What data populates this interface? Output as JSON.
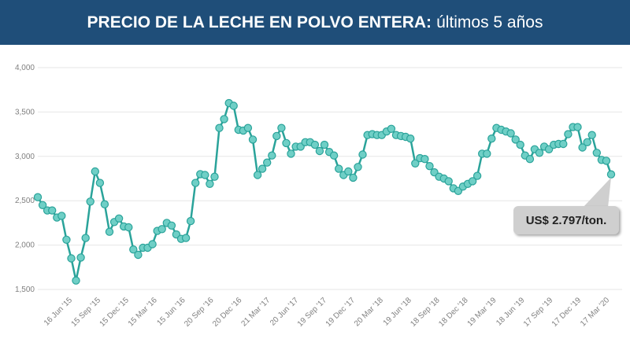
{
  "header": {
    "title_bold": "PRECIO DE LA LECHE EN POLVO ENTERA:",
    "title_rest": "últimos 5 años"
  },
  "callout": {
    "text": "US$ 2.797/ton."
  },
  "colors": {
    "header_bg": "#1f4e79",
    "line": "#2aa39a",
    "marker": "#6fcfc6",
    "grid": "#e6e6e6"
  },
  "chart_data": {
    "type": "line",
    "title": "PRECIO DE LA LECHE EN POLVO ENTERA: últimos 5 años",
    "xlabel": "",
    "ylabel": "",
    "ylim": [
      1500,
      4000
    ],
    "yticks": [
      1500,
      2000,
      2500,
      3000,
      3500,
      4000
    ],
    "ytick_labels": [
      "1,500",
      "2,000",
      "2,500",
      "3,000",
      "3,500",
      "4,000"
    ],
    "grid": true,
    "xtick_labels": [
      "16 Jun '15",
      "15 Sep '15",
      "15 Dec '15",
      "15 Mar '16",
      "15 Jun '16",
      "20 Sep '16",
      "20 Dec '16",
      "21 Mar '17",
      "20 Jun '17",
      "19 Sep '17",
      "19 Dec '17",
      "20 Mar '18",
      "19 Jun '18",
      "18 Sep '18",
      "18 Dec '18",
      "19 Mar '19",
      "18 Jun '19",
      "17 Sep '19",
      "17 Dec '19",
      "17 Mar '20"
    ],
    "series": [
      {
        "values": [
          2540,
          2450,
          2390,
          2390,
          2310,
          2330,
          2060,
          1850,
          1600,
          1860,
          2080,
          2490,
          2830,
          2700,
          2460,
          2150,
          2260,
          2300,
          2210,
          2200,
          1950,
          1890,
          1970,
          1970,
          2010,
          2160,
          2180,
          2250,
          2220,
          2120,
          2070,
          2080,
          2270,
          2700,
          2800,
          2790,
          2690,
          2770,
          3320,
          3420,
          3600,
          3570,
          3300,
          3290,
          3320,
          3190,
          2790,
          2860,
          2930,
          3010,
          3230,
          3320,
          3150,
          3030,
          3110,
          3110,
          3160,
          3160,
          3130,
          3060,
          3130,
          3050,
          3010,
          2860,
          2790,
          2830,
          2760,
          2880,
          3020,
          3240,
          3250,
          3240,
          3240,
          3280,
          3310,
          3240,
          3230,
          3220,
          3200,
          2920,
          2980,
          2970,
          2890,
          2820,
          2770,
          2750,
          2720,
          2640,
          2610,
          2660,
          2690,
          2720,
          2780,
          3030,
          3030,
          3200,
          3320,
          3300,
          3280,
          3260,
          3190,
          3130,
          3010,
          2970,
          3080,
          3040,
          3110,
          3080,
          3130,
          3140,
          3140,
          3250,
          3330,
          3330,
          3100,
          3160,
          3240,
          3040,
          2960,
          2950,
          2797
        ]
      }
    ]
  }
}
